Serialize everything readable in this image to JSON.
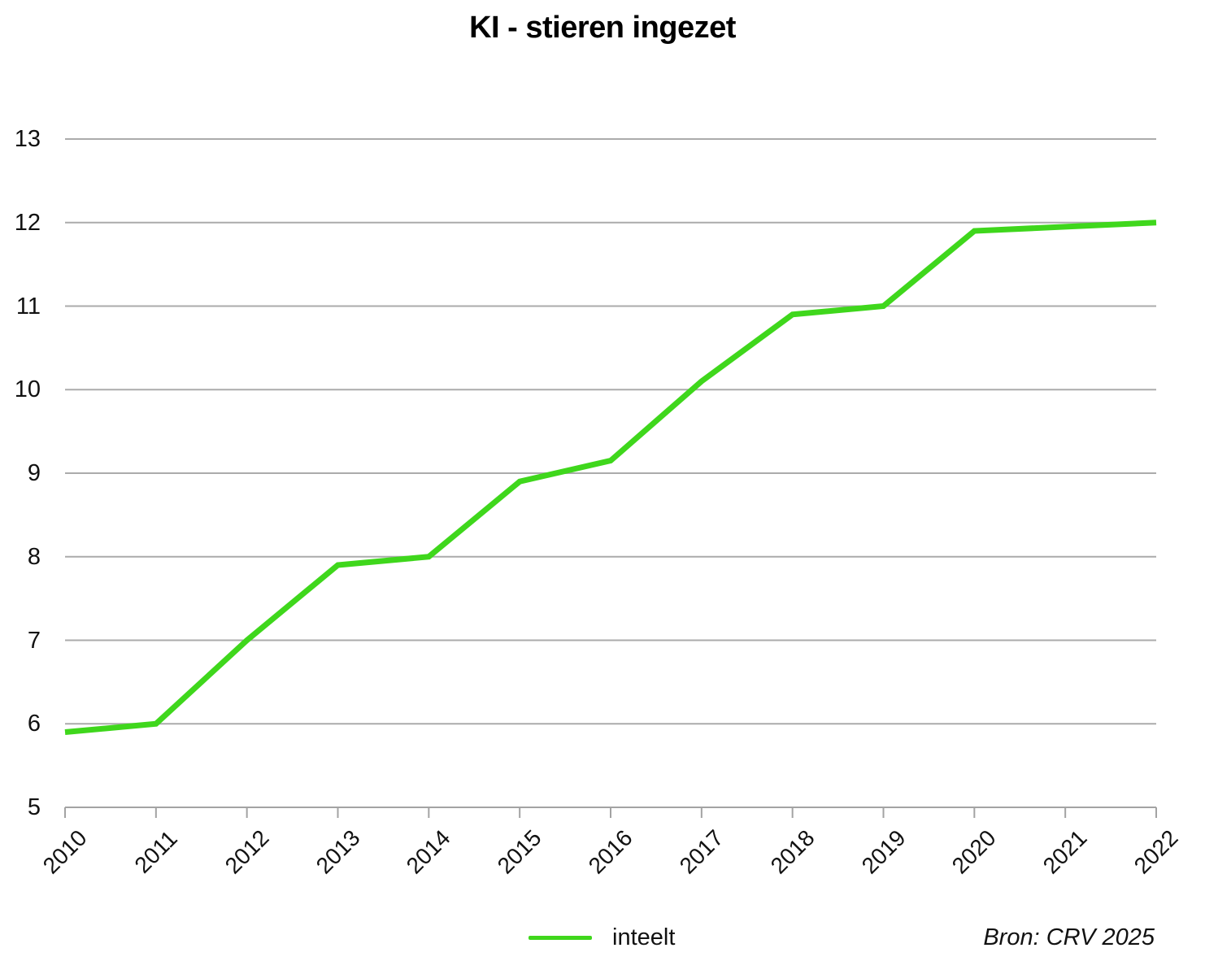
{
  "page": {
    "background": "#ffffff"
  },
  "chart_data": {
    "type": "line",
    "title": "KI - stieren ingezet",
    "x": [
      "2010",
      "2011",
      "2012",
      "2013",
      "2014",
      "2015",
      "2016",
      "2017",
      "2018",
      "2019",
      "2020",
      "2021",
      "2022"
    ],
    "series": [
      {
        "name": "inteelt",
        "color": "#3fd71c",
        "values": [
          5.9,
          6.0,
          7.0,
          7.9,
          8.0,
          8.9,
          9.15,
          10.1,
          10.9,
          11.0,
          11.9,
          11.95,
          12.0
        ]
      }
    ],
    "xlabel": "",
    "ylabel": "",
    "ylim": [
      5,
      13
    ],
    "yticks": [
      5,
      6,
      7,
      8,
      9,
      10,
      11,
      12,
      13
    ],
    "grid": "horizontal",
    "gridline_color": "#ababab",
    "axis_color": "#a3a3a3",
    "legend": {
      "position": "bottom-center",
      "entries": [
        "inteelt"
      ]
    },
    "source_note": "Bron: CRV 2025"
  }
}
